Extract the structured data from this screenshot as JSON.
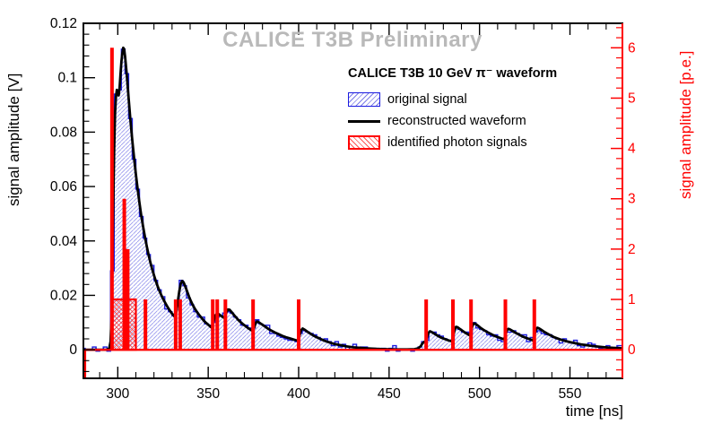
{
  "watermark": "CALICE T3B Preliminary",
  "legend": {
    "header": "CALICE T3B 10 GeV π⁻ waveform",
    "items": [
      {
        "label": "original signal",
        "swatch": "blue-hatch"
      },
      {
        "label": "reconstructed waveform",
        "swatch": "black-line"
      },
      {
        "label": "identified photon signals",
        "swatch": "red-hatch"
      }
    ]
  },
  "colors": {
    "blue": "#1c1ce0",
    "black": "#000000",
    "red": "#ff0000",
    "watermark_gray": "#b9b9b9"
  },
  "chart_data": {
    "type": "line",
    "title": "CALICE T3B Preliminary",
    "xlabel": "time [ns]",
    "ylabel_left": "signal amplitude [V]",
    "ylabel_right": "signal amplitude [p.e.]",
    "xlim": [
      281,
      579
    ],
    "ylim_left": [
      -0.0105,
      0.12
    ],
    "ylim_right_pe": [
      -0.57,
      6.49
    ],
    "pe_unit_volts": 0.0185,
    "grid": false,
    "legend_position": "upper right",
    "axes": {
      "bottom": {
        "title": "time [ns]",
        "major_ticks": [
          300,
          350,
          400,
          450,
          500,
          550
        ],
        "minor_step": 10
      },
      "left": {
        "title": "signal amplitude [V]",
        "major_ticks": [
          0,
          0.02,
          0.04,
          0.06,
          0.08,
          0.1,
          0.12
        ],
        "major_labels": [
          "0",
          "0.02",
          "0.04",
          "0.06",
          "0.08",
          "0.1",
          "0.12"
        ],
        "minor_step": 0.004
      },
      "right": {
        "title": "signal amplitude [p.e.]",
        "major_ticks": [
          0,
          1,
          2,
          3,
          4,
          5,
          6
        ],
        "major_labels": [
          "0",
          "1",
          "2",
          "3",
          "4",
          "5",
          "6"
        ],
        "minor_step": 0.2,
        "color": "#ff0000"
      }
    },
    "series": {
      "reconstructed_waveform": {
        "name": "reconstructed waveform",
        "color": "#000000",
        "points": [
          [
            281,
            0
          ],
          [
            294,
            0
          ],
          [
            295.3,
            0.0005
          ],
          [
            296,
            0.003
          ],
          [
            296.5,
            0.011
          ],
          [
            297,
            0.03
          ],
          [
            297.5,
            0.054
          ],
          [
            298,
            0.074
          ],
          [
            298.5,
            0.087
          ],
          [
            299,
            0.093
          ],
          [
            299.5,
            0.0955
          ],
          [
            300,
            0.0945
          ],
          [
            300.5,
            0.0935
          ],
          [
            301,
            0.096
          ],
          [
            301.5,
            0.101
          ],
          [
            302,
            0.106
          ],
          [
            302.5,
            0.109
          ],
          [
            303,
            0.111
          ],
          [
            303.5,
            0.1105
          ],
          [
            304,
            0.108
          ],
          [
            305,
            0.101
          ],
          [
            306,
            0.0925
          ],
          [
            307,
            0.0845
          ],
          [
            308,
            0.077
          ],
          [
            309,
            0.0705
          ],
          [
            310,
            0.0645
          ],
          [
            311,
            0.059
          ],
          [
            312,
            0.054
          ],
          [
            313,
            0.0493
          ],
          [
            314,
            0.0452
          ],
          [
            315,
            0.0415
          ],
          [
            316,
            0.0381
          ],
          [
            317,
            0.035
          ],
          [
            318,
            0.0322
          ],
          [
            319,
            0.0297
          ],
          [
            320,
            0.0274
          ],
          [
            321,
            0.0253
          ],
          [
            322,
            0.0234
          ],
          [
            323,
            0.0217
          ],
          [
            324,
            0.0202
          ],
          [
            325,
            0.0188
          ],
          [
            326,
            0.0175
          ],
          [
            327,
            0.0163
          ],
          [
            328,
            0.0152
          ],
          [
            329,
            0.0142
          ],
          [
            330,
            0.0133
          ],
          [
            331,
            0.0125
          ],
          [
            331.6,
            0.0121
          ],
          [
            332.4,
            0.014
          ],
          [
            333.2,
            0.0178
          ],
          [
            334,
            0.0215
          ],
          [
            334.8,
            0.0242
          ],
          [
            335.6,
            0.0253
          ],
          [
            336.4,
            0.0248
          ],
          [
            337.4,
            0.0232
          ],
          [
            338.4,
            0.0213
          ],
          [
            339.4,
            0.0195
          ],
          [
            340.4,
            0.0179
          ],
          [
            341.6,
            0.0163
          ],
          [
            342.8,
            0.0149
          ],
          [
            344,
            0.0137
          ],
          [
            345.2,
            0.0126
          ],
          [
            346.4,
            0.0116
          ],
          [
            347.6,
            0.0107
          ],
          [
            348.8,
            0.0099
          ],
          [
            350,
            0.0092
          ],
          [
            351,
            0.0086
          ],
          [
            351.8,
            0.0082
          ],
          [
            352.6,
            0.0095
          ],
          [
            353.4,
            0.0115
          ],
          [
            354.2,
            0.0128
          ],
          [
            355,
            0.0133
          ],
          [
            355.8,
            0.0131
          ],
          [
            356.6,
            0.0127
          ],
          [
            357.6,
            0.0122
          ],
          [
            358.6,
            0.0118
          ],
          [
            359.4,
            0.0125
          ],
          [
            360.2,
            0.014
          ],
          [
            361,
            0.0148
          ],
          [
            361.8,
            0.0147
          ],
          [
            363,
            0.0138
          ],
          [
            364.2,
            0.0128
          ],
          [
            365.4,
            0.0119
          ],
          [
            366.6,
            0.011
          ],
          [
            368,
            0.0101
          ],
          [
            369.4,
            0.0093
          ],
          [
            370.8,
            0.0086
          ],
          [
            372.2,
            0.0079
          ],
          [
            373.6,
            0.0073
          ],
          [
            374.6,
            0.0069
          ],
          [
            375.4,
            0.0082
          ],
          [
            376.2,
            0.0098
          ],
          [
            377,
            0.0104
          ],
          [
            378,
            0.0101
          ],
          [
            379.5,
            0.0094
          ],
          [
            381,
            0.0087
          ],
          [
            383,
            0.0078
          ],
          [
            385,
            0.007
          ],
          [
            387,
            0.0063
          ],
          [
            389,
            0.0057
          ],
          [
            391,
            0.0051
          ],
          [
            393,
            0.0046
          ],
          [
            395,
            0.0042
          ],
          [
            397,
            0.0038
          ],
          [
            399,
            0.0034
          ],
          [
            399.8,
            0.0033
          ],
          [
            400.6,
            0.0055
          ],
          [
            401.4,
            0.0072
          ],
          [
            402.2,
            0.0078
          ],
          [
            403.2,
            0.0074
          ],
          [
            404.5,
            0.0068
          ],
          [
            406,
            0.0061
          ],
          [
            408,
            0.0053
          ],
          [
            410,
            0.0046
          ],
          [
            412,
            0.004
          ],
          [
            414,
            0.0034
          ],
          [
            416,
            0.0029
          ],
          [
            418,
            0.0025
          ],
          [
            420,
            0.0021
          ],
          [
            423,
            0.0017
          ],
          [
            426,
            0.0013
          ],
          [
            430,
            0.0009
          ],
          [
            434,
            0.0007
          ],
          [
            438,
            0.0005
          ],
          [
            443,
            0.0003
          ],
          [
            448,
            0.0002
          ],
          [
            454,
            0.0001
          ],
          [
            460,
            0.0001
          ],
          [
            464,
            0.0002
          ],
          [
            466,
            0.0005
          ],
          [
            467.5,
            0.0013
          ],
          [
            468.5,
            0.0024
          ],
          [
            469.5,
            0.0029
          ],
          [
            470.3,
            0.003
          ],
          [
            471,
            0.0046
          ],
          [
            471.8,
            0.0062
          ],
          [
            472.6,
            0.0068
          ],
          [
            473.6,
            0.0065
          ],
          [
            475,
            0.0059
          ],
          [
            477,
            0.0051
          ],
          [
            479,
            0.0044
          ],
          [
            481,
            0.0039
          ],
          [
            483,
            0.0034
          ],
          [
            484.6,
            0.0031
          ],
          [
            485.4,
            0.0048
          ],
          [
            486.2,
            0.0072
          ],
          [
            487,
            0.0084
          ],
          [
            487.8,
            0.0083
          ],
          [
            489,
            0.0077
          ],
          [
            490.5,
            0.007
          ],
          [
            492,
            0.0063
          ],
          [
            493.5,
            0.0057
          ],
          [
            494.6,
            0.0053
          ],
          [
            495.4,
            0.0072
          ],
          [
            496.2,
            0.009
          ],
          [
            497,
            0.0097
          ],
          [
            497.8,
            0.0095
          ],
          [
            499,
            0.0089
          ],
          [
            500.5,
            0.0081
          ],
          [
            502,
            0.0074
          ],
          [
            504,
            0.0066
          ],
          [
            506,
            0.0059
          ],
          [
            508,
            0.0052
          ],
          [
            510,
            0.0047
          ],
          [
            512,
            0.0042
          ],
          [
            513.6,
            0.0038
          ],
          [
            514.4,
            0.0056
          ],
          [
            515.2,
            0.0072
          ],
          [
            516,
            0.0077
          ],
          [
            517,
            0.0074
          ],
          [
            518.5,
            0.0068
          ],
          [
            520,
            0.0062
          ],
          [
            522,
            0.0055
          ],
          [
            524,
            0.0048
          ],
          [
            526,
            0.0043
          ],
          [
            528,
            0.0038
          ],
          [
            529.6,
            0.0034
          ],
          [
            530.4,
            0.0055
          ],
          [
            531.2,
            0.0074
          ],
          [
            532,
            0.0081
          ],
          [
            532.8,
            0.0079
          ],
          [
            534,
            0.0074
          ],
          [
            535.5,
            0.0067
          ],
          [
            537,
            0.0061
          ],
          [
            539,
            0.0054
          ],
          [
            541,
            0.0047
          ],
          [
            543,
            0.0042
          ],
          [
            545,
            0.0037
          ],
          [
            547.5,
            0.0032
          ],
          [
            550,
            0.0028
          ],
          [
            553,
            0.0024
          ],
          [
            556,
            0.002
          ],
          [
            559,
            0.0017
          ],
          [
            562,
            0.0014
          ],
          [
            565,
            0.0012
          ],
          [
            568,
            0.001
          ],
          [
            571,
            0.0008
          ],
          [
            574,
            0.0007
          ],
          [
            577,
            0.0006
          ],
          [
            579,
            0.0005
          ]
        ]
      },
      "original_signal": {
        "name": "original signal",
        "color": "#1c1ce0",
        "representation": "reconstructed waveform sampled in 2 ns bins with sampling noise",
        "bin_t0": 280,
        "bin_width_ns": 2,
        "noise_amplitude_v": 0.0012,
        "noise_seed": 13
      },
      "identified_photon_signals": {
        "name": "identified photon signals",
        "color": "#ff0000",
        "baseline_pe": 0,
        "left_edge_t": 281.9,
        "plateau": {
          "t_start": 296.8,
          "t_end": 310,
          "pe": 1
        },
        "spikes_t_pe": [
          [
            296.8,
            6
          ],
          [
            303.6,
            3
          ],
          [
            305.5,
            2
          ],
          [
            315.3,
            1
          ],
          [
            332,
            1
          ],
          [
            334.5,
            1
          ],
          [
            352.5,
            1
          ],
          [
            355,
            1
          ],
          [
            359.5,
            1
          ],
          [
            374.8,
            1
          ],
          [
            400,
            1
          ],
          [
            470.5,
            1
          ],
          [
            485.3,
            1
          ],
          [
            495.3,
            1
          ],
          [
            514.3,
            1
          ],
          [
            530.3,
            1
          ]
        ]
      }
    }
  }
}
